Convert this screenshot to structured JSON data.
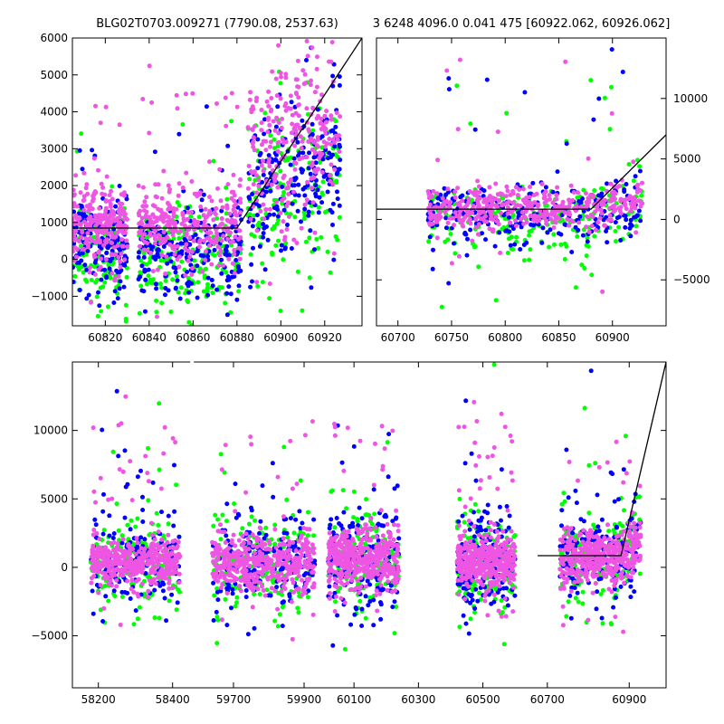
{
  "figure": {
    "left_title": "BLG02T0703.009271 (7790.08, 2537.63)",
    "right_title": "3 6248 4096.0 0.041 475 [60922.062, 60926.062]"
  },
  "colors": {
    "green": "#00ff00",
    "blue": "#0000ff",
    "magenta": "#ee55e3",
    "model_line": "#000000",
    "axes": "#000000",
    "background": "#ffffff"
  },
  "chart_data": [
    {
      "id": "top-left",
      "type": "scatter",
      "title": "BLG02T0703.009271 (7790.08, 2537.63)",
      "xlim": [
        60805,
        60937
      ],
      "ylim": [
        -1800,
        6000
      ],
      "xticks": [
        60820,
        60840,
        60860,
        60880,
        60900,
        60920
      ],
      "yticks": [
        -1000,
        0,
        1000,
        2000,
        3000,
        4000,
        5000,
        6000
      ],
      "ytick_side": "left",
      "grid": false,
      "series": [
        {
          "color": "green",
          "clusters": [
            {
              "x": [
                60805,
                60830
              ],
              "center": 200,
              "spread": 700,
              "count": 140
            },
            {
              "x": [
                60835,
                60882
              ],
              "center": 0,
              "spread": 700,
              "count": 180
            },
            {
              "x": [
                60885,
                60927
              ],
              "center": 1000,
              "spread": 1100,
              "count": 160
            }
          ]
        },
        {
          "color": "blue",
          "clusters": [
            {
              "x": [
                60805,
                60830
              ],
              "center": 400,
              "spread": 650,
              "count": 170
            },
            {
              "x": [
                60835,
                60882
              ],
              "center": 200,
              "spread": 650,
              "count": 220
            },
            {
              "x": [
                60885,
                60927
              ],
              "center": 1400,
              "spread": 1000,
              "count": 220
            }
          ]
        },
        {
          "color": "magenta",
          "clusters": [
            {
              "x": [
                60805,
                60830
              ],
              "center": 900,
              "spread": 550,
              "count": 240
            },
            {
              "x": [
                60835,
                60882
              ],
              "center": 900,
              "spread": 550,
              "count": 300
            },
            {
              "x": [
                60885,
                60927
              ],
              "center": 2500,
              "spread": 1300,
              "count": 260
            }
          ]
        }
      ],
      "model_line": {
        "x": [
          60805,
          60880,
          60937
        ],
        "y": [
          850,
          850,
          6000
        ]
      }
    },
    {
      "id": "top-right",
      "type": "scatter",
      "title": "3 6248 4096.0 0.041 475 [60922.062, 60926.062]",
      "xlim": [
        60680,
        60950
      ],
      "ylim": [
        -8800,
        15000
      ],
      "xticks": [
        60700,
        60750,
        60800,
        60850,
        60900
      ],
      "yticks": [
        -5000,
        0,
        5000,
        10000
      ],
      "ytick_side": "right",
      "grid": false,
      "series": [
        {
          "color": "green",
          "clusters": [
            {
              "x": [
                60728,
                60928
              ],
              "center": 0,
              "spread": 1400,
              "count": 220
            }
          ]
        },
        {
          "color": "blue",
          "clusters": [
            {
              "x": [
                60728,
                60928
              ],
              "center": 300,
              "spread": 1300,
              "count": 260
            }
          ]
        },
        {
          "color": "magenta",
          "clusters": [
            {
              "x": [
                60728,
                60928
              ],
              "center": 800,
              "spread": 900,
              "count": 420
            }
          ]
        }
      ],
      "model_line": {
        "x": [
          60680,
          60880,
          60950
        ],
        "y": [
          850,
          850,
          7000
        ]
      }
    },
    {
      "id": "bottom",
      "type": "scatter",
      "title": "",
      "ylim": [
        -8800,
        15000
      ],
      "yticks": [
        -5000,
        0,
        5000,
        10000
      ],
      "ytick_side": "left",
      "grid": false,
      "segments": [
        {
          "xlim": [
            58130,
            58450
          ],
          "xticks": [
            58200,
            58400
          ],
          "data_x": [
            58180,
            58420
          ]
        },
        {
          "xlim": [
            59580,
            59950
          ],
          "xticks": [
            59700,
            59900
          ],
          "data_x": [
            59640,
            59930
          ]
        },
        {
          "xlim": [
            60000,
            60700
          ],
          "xticks": [
            60100,
            60300,
            60500
          ],
          "data_x": [
            60020,
            60240,
            60420,
            60600
          ]
        },
        {
          "xlim": [
            60700,
            60990
          ],
          "xticks": [
            60700,
            60900
          ],
          "data_x": [
            60730,
            60928
          ]
        }
      ],
      "seasons": [
        {
          "x": [
            58180,
            58420
          ],
          "center": 300,
          "spread": 1600
        },
        {
          "x": [
            59640,
            59930
          ],
          "center": 300,
          "spread": 1800
        },
        {
          "x": [
            60020,
            60240
          ],
          "center": 500,
          "spread": 2000
        },
        {
          "x": [
            60420,
            60600
          ],
          "center": 300,
          "spread": 1800
        },
        {
          "x": [
            60730,
            60928
          ],
          "center": 600,
          "spread": 1700
        }
      ],
      "series_colors": [
        "green",
        "blue",
        "magenta"
      ],
      "model_line": {
        "x": [
          60670,
          60880,
          60990
        ],
        "y": [
          850,
          850,
          15000
        ]
      }
    }
  ]
}
